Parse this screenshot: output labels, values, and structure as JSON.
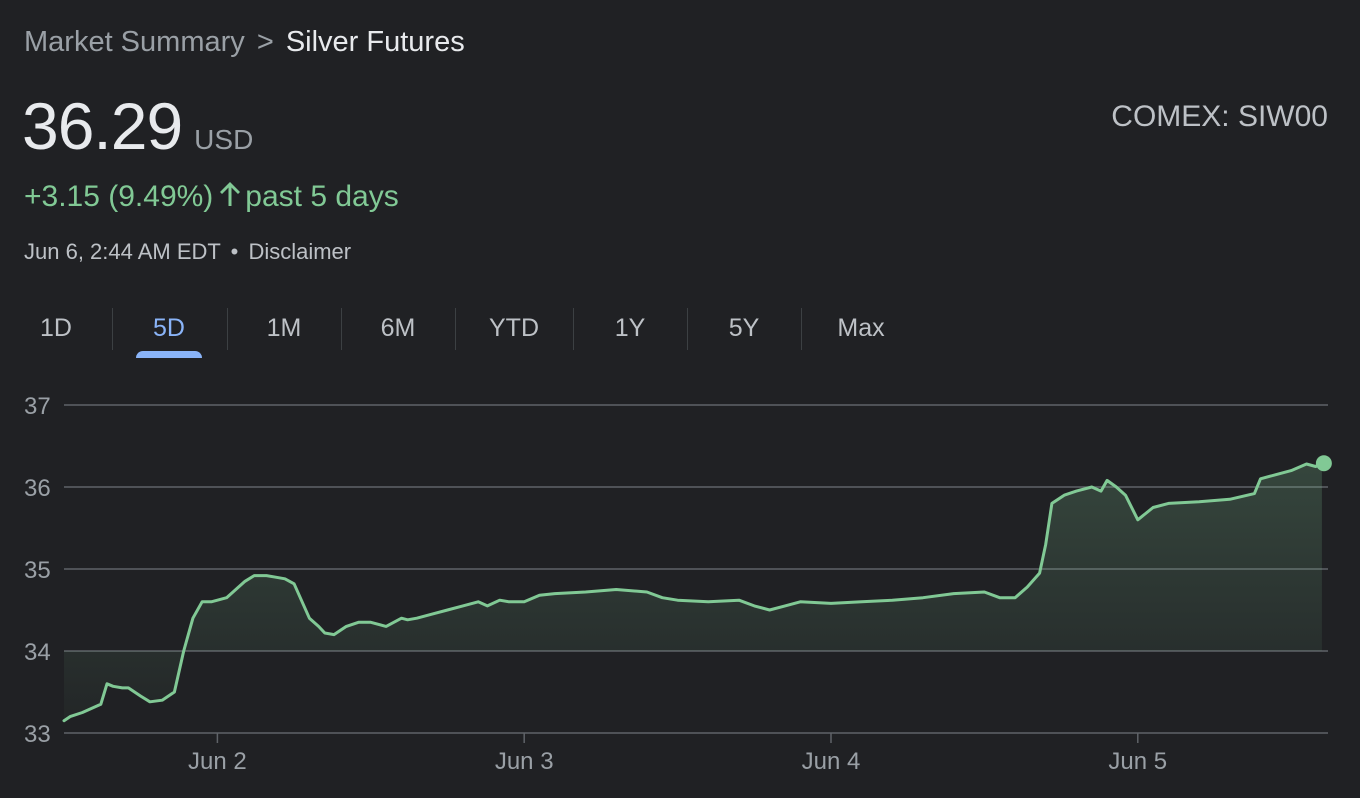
{
  "breadcrumb": {
    "parent": "Market Summary",
    "separator": ">",
    "current": "Silver Futures"
  },
  "quote": {
    "price": "36.29",
    "currency": "USD",
    "ticker": "COMEX: SIW00",
    "change": "+3.15 (9.49%)",
    "period": "past 5 days",
    "timestamp": "Jun 6, 2:44 AM EDT",
    "meta_separator": "•",
    "disclaimer": "Disclaimer"
  },
  "colors": {
    "background": "#202124",
    "positive": "#81c995",
    "accent": "#8ab4f8",
    "grid": "#5f6368",
    "text_secondary": "#9aa0a6"
  },
  "tabs": [
    {
      "label": "1D",
      "active": false
    },
    {
      "label": "5D",
      "active": true
    },
    {
      "label": "1M",
      "active": false
    },
    {
      "label": "6M",
      "active": false
    },
    {
      "label": "YTD",
      "active": false
    },
    {
      "label": "1Y",
      "active": false
    },
    {
      "label": "5Y",
      "active": false
    },
    {
      "label": "Max",
      "active": false
    }
  ],
  "chart_data": {
    "type": "area",
    "title": "",
    "xlabel": "",
    "ylabel": "",
    "ylim": [
      33,
      37
    ],
    "xlim": [
      1.5,
      5.62
    ],
    "yticks": [
      33,
      34,
      35,
      36,
      37
    ],
    "grid": true,
    "x_ticks": [
      {
        "label": "Jun 2",
        "x": 2
      },
      {
        "label": "Jun 3",
        "x": 3
      },
      {
        "label": "Jun 4",
        "x": 4
      },
      {
        "label": "Jun 5",
        "x": 5
      }
    ],
    "series": [
      {
        "name": "",
        "color": "#81c995",
        "x": [
          1.5,
          1.52,
          1.56,
          1.62,
          1.64,
          1.66,
          1.69,
          1.71,
          1.75,
          1.78,
          1.82,
          1.84,
          1.86,
          1.89,
          1.92,
          1.95,
          1.98,
          2.0,
          2.03,
          2.06,
          2.09,
          2.12,
          2.16,
          2.19,
          2.22,
          2.25,
          2.3,
          2.33,
          2.35,
          2.38,
          2.42,
          2.46,
          2.5,
          2.55,
          2.6,
          2.62,
          2.65,
          2.7,
          2.75,
          2.8,
          2.85,
          2.88,
          2.92,
          2.95,
          3.0,
          3.05,
          3.1,
          3.2,
          3.3,
          3.4,
          3.45,
          3.5,
          3.6,
          3.7,
          3.75,
          3.8,
          3.85,
          3.9,
          4.0,
          4.1,
          4.2,
          4.3,
          4.4,
          4.5,
          4.55,
          4.6,
          4.64,
          4.68,
          4.7,
          4.72,
          4.76,
          4.8,
          4.85,
          4.88,
          4.9,
          4.93,
          4.96,
          5.0,
          5.05,
          5.1,
          5.2,
          5.3,
          5.38,
          5.4,
          5.45,
          5.5,
          5.55,
          5.58,
          5.6
        ],
        "values": [
          33.15,
          33.2,
          33.25,
          33.35,
          33.6,
          33.57,
          33.55,
          33.55,
          33.45,
          33.38,
          33.4,
          33.45,
          33.5,
          34.0,
          34.4,
          34.6,
          34.6,
          34.62,
          34.65,
          34.75,
          34.85,
          34.92,
          34.92,
          34.9,
          34.88,
          34.82,
          34.4,
          34.3,
          34.22,
          34.2,
          34.3,
          34.35,
          34.35,
          34.3,
          34.4,
          34.38,
          34.4,
          34.45,
          34.5,
          34.55,
          34.6,
          34.55,
          34.62,
          34.6,
          34.6,
          34.68,
          34.7,
          34.72,
          34.75,
          34.72,
          34.65,
          34.62,
          34.6,
          34.62,
          34.55,
          34.5,
          34.55,
          34.6,
          34.58,
          34.6,
          34.62,
          34.65,
          34.7,
          34.72,
          34.65,
          34.65,
          34.78,
          34.95,
          35.3,
          35.8,
          35.9,
          35.95,
          36.0,
          35.95,
          36.08,
          36.0,
          35.9,
          35.6,
          35.75,
          35.8,
          35.82,
          35.85,
          35.92,
          36.1,
          36.15,
          36.2,
          36.28,
          36.25,
          36.29
        ]
      }
    ]
  }
}
